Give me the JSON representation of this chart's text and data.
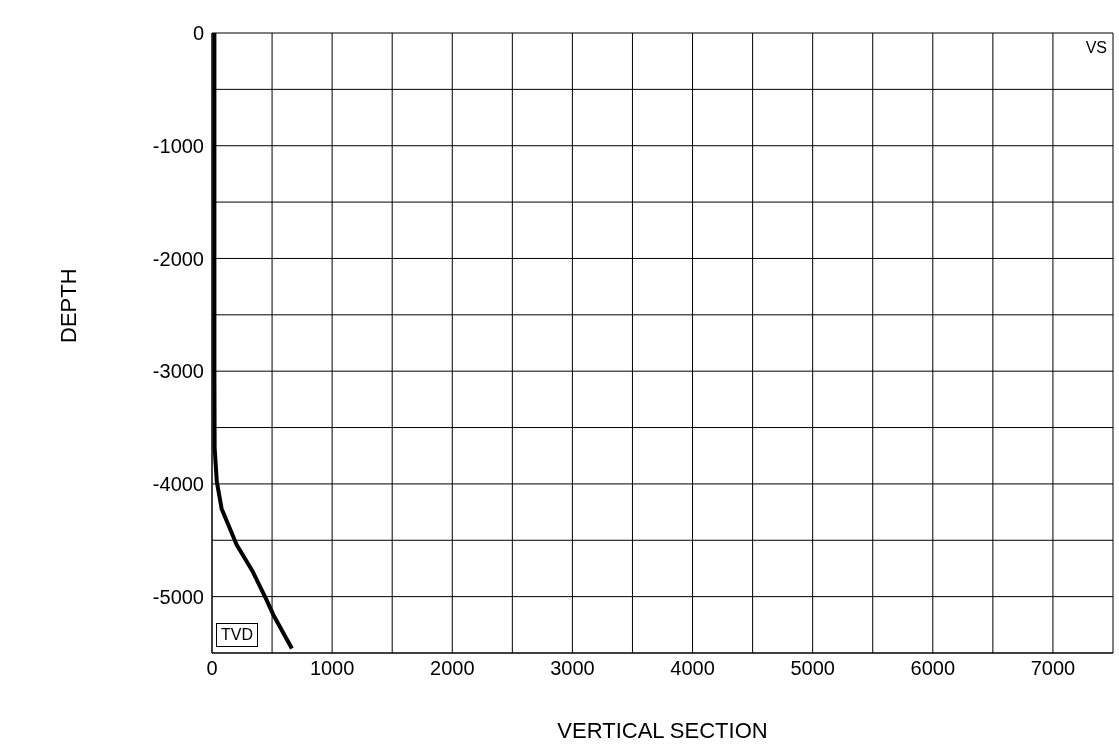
{
  "chart_data": {
    "type": "line",
    "xlabel": "VERTICAL SECTION",
    "ylabel": "DEPTH",
    "x": [
      20,
      20,
      22,
      40,
      80,
      205,
      340,
      450,
      510,
      665
    ],
    "series": [
      {
        "color": "#000000",
        "values": [
          0,
          -3000,
          -3680,
          -3980,
          -4220,
          -4540,
          -4780,
          -5020,
          -5160,
          -5460
        ]
      }
    ],
    "xlim": [
      0,
      7500
    ],
    "xticks": [
      0,
      {
        "value": 500,
        "label": null
      },
      1000,
      {
        "value": 1500,
        "label": null
      },
      2000,
      {
        "value": 2500,
        "label": null
      },
      3000,
      {
        "value": 3500,
        "label": null
      },
      4000,
      {
        "value": 4500,
        "label": null
      },
      5000,
      {
        "value": 5500,
        "label": null
      },
      6000,
      {
        "value": 6500,
        "label": null
      },
      7000,
      {
        "value": 7500,
        "label": null
      }
    ],
    "ylim": [
      -5500,
      0
    ],
    "yticks": [
      0,
      {
        "value": -500,
        "label": null
      },
      -1000,
      {
        "value": -1500,
        "label": null
      },
      -2000,
      {
        "value": -2500,
        "label": null
      },
      -3000,
      {
        "value": -3500,
        "label": null
      },
      -4000,
      {
        "value": -4500,
        "label": null
      },
      -5000,
      {
        "value": -5500,
        "label": null
      }
    ],
    "grid": true,
    "marker": "none",
    "line_style": "solid",
    "legend": false,
    "annotations": [
      "TVD",
      "VS"
    ]
  }
}
